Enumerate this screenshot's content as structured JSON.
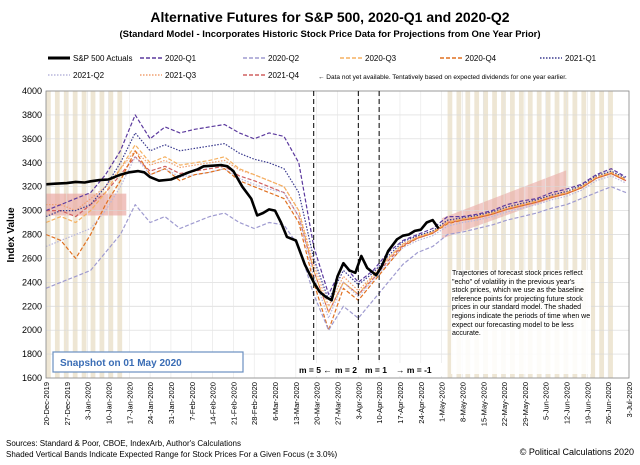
{
  "chart_data": {
    "type": "line",
    "title": "Alternative Futures for S&P 500, 2020-Q1 and 2020-Q2",
    "subtitle": "(Standard Model - Incorporates Historic Stock Price Data for Projections from One Year Prior)",
    "ylabel": "Index Value",
    "xlabel": "",
    "ylim": [
      1600,
      4000
    ],
    "yticks": [
      1600,
      1800,
      2000,
      2200,
      2400,
      2600,
      2800,
      3000,
      3200,
      3400,
      3600,
      3800,
      4000
    ],
    "xlim": [
      "2019-12-20",
      "2020-07-03"
    ],
    "xticks": [
      "20-Dec-2019",
      "27-Dec-2019",
      "3-Jan-2020",
      "10-Jan-2020",
      "17-Jan-2020",
      "24-Jan-2020",
      "31-Jan-2020",
      "7-Feb-2020",
      "14-Feb-2020",
      "21-Feb-2020",
      "28-Feb-2020",
      "6-Mar-2020",
      "13-Mar-2020",
      "20-Mar-2020",
      "27-Mar-2020",
      "3-Apr-2020",
      "10-Apr-2020",
      "17-Apr-2020",
      "24-Apr-2020",
      "1-May-2020",
      "8-May-2020",
      "15-May-2020",
      "22-May-2020",
      "29-May-2020",
      "5-Jun-2020",
      "12-Jun-2020",
      "19-Jun-2020",
      "26-Jun-2020",
      "3-Jul-2020"
    ],
    "grid": true,
    "legend_position": "top",
    "legend_note": "← Data not yet available. Tentatively based on expected dividends for one year earlier.",
    "series": [
      {
        "name": "S&P 500 Actuals",
        "color": "#000000",
        "style": "solid",
        "x": [
          0,
          3,
          7,
          10,
          13,
          15,
          18,
          21,
          23,
          25,
          28,
          31,
          33,
          35,
          38,
          42,
          45,
          48,
          51,
          53,
          56,
          59,
          61,
          63,
          66,
          69,
          71,
          73,
          75,
          77,
          79,
          81,
          84,
          87,
          90,
          92,
          94,
          96,
          98,
          100,
          102,
          104,
          106,
          108,
          111,
          113,
          115,
          118,
          120,
          122,
          124,
          126,
          128,
          130,
          132
        ],
        "values": [
          3220,
          3225,
          3230,
          3240,
          3235,
          3245,
          3255,
          3260,
          3280,
          3300,
          3320,
          3330,
          3320,
          3280,
          3250,
          3260,
          3290,
          3320,
          3345,
          3370,
          3375,
          3380,
          3370,
          3330,
          3200,
          3100,
          2960,
          2980,
          3010,
          3000,
          2900,
          2780,
          2750,
          2550,
          2400,
          2320,
          2280,
          2250,
          2450,
          2560,
          2500,
          2480,
          2620,
          2520,
          2460,
          2540,
          2660,
          2760,
          2790,
          2800,
          2830,
          2840,
          2900,
          2920,
          2850
        ]
      },
      {
        "name": "2020-Q1",
        "color": "#5c3a9e",
        "style": "dashed",
        "x": [
          0,
          5,
          10,
          15,
          20,
          25,
          30,
          35,
          40,
          45,
          50,
          55,
          60,
          65,
          70,
          75,
          80,
          85,
          90,
          95,
          100,
          105,
          110,
          115,
          120,
          125,
          130,
          135,
          140,
          145,
          150,
          155,
          160,
          165,
          170,
          175,
          180,
          185,
          190,
          195
        ],
        "values": [
          3000,
          3050,
          3100,
          3150,
          3300,
          3500,
          3800,
          3600,
          3700,
          3650,
          3680,
          3700,
          3720,
          3650,
          3600,
          3650,
          3620,
          3400,
          2700,
          2300,
          2550,
          2400,
          2500,
          2650,
          2750,
          2800,
          2850,
          2950,
          2950,
          2970,
          3000,
          3050,
          3080,
          3100,
          3150,
          3180,
          3220,
          3300,
          3350,
          3280
        ]
      },
      {
        "name": "2020-Q2",
        "color": "#9f9bd0",
        "style": "dashed",
        "x": [
          0,
          5,
          10,
          15,
          20,
          25,
          30,
          35,
          40,
          45,
          50,
          55,
          60,
          65,
          70,
          75,
          80,
          85,
          90,
          95,
          100,
          105,
          110,
          115,
          120,
          125,
          130,
          135,
          140,
          145,
          150,
          155,
          160,
          165,
          170,
          175,
          180,
          185,
          190,
          195
        ],
        "values": [
          2350,
          2400,
          2450,
          2500,
          2650,
          2800,
          3050,
          2900,
          2950,
          2850,
          2900,
          2950,
          2980,
          2900,
          2850,
          2900,
          2880,
          2700,
          2300,
          2000,
          2200,
          2100,
          2250,
          2400,
          2550,
          2650,
          2700,
          2800,
          2820,
          2850,
          2880,
          2920,
          2950,
          2980,
          3020,
          3050,
          3100,
          3150,
          3200,
          3150
        ]
      },
      {
        "name": "2020-Q3",
        "color": "#f5b060",
        "style": "dashed",
        "x": [
          0,
          5,
          10,
          15,
          20,
          25,
          30,
          35,
          40,
          45,
          50,
          55,
          60,
          65,
          70,
          75,
          80,
          85,
          90,
          95,
          100,
          105,
          110,
          115,
          120,
          125,
          130,
          135,
          140,
          145,
          150,
          155,
          160,
          165,
          170,
          175,
          180,
          185,
          190,
          195
        ],
        "values": [
          2900,
          2950,
          2900,
          3000,
          3150,
          3350,
          3550,
          3400,
          3450,
          3380,
          3400,
          3420,
          3450,
          3350,
          3300,
          3250,
          3200,
          3000,
          2500,
          2150,
          2400,
          2300,
          2450,
          2600,
          2720,
          2780,
          2820,
          2900,
          2930,
          2950,
          2980,
          3020,
          3050,
          3080,
          3120,
          3150,
          3200,
          3280,
          3320,
          3260
        ]
      },
      {
        "name": "2020-Q4",
        "color": "#e07020",
        "style": "dashed",
        "x": [
          0,
          5,
          10,
          15,
          20,
          25,
          30,
          35,
          40,
          45,
          50,
          55,
          60,
          65,
          70,
          75,
          80,
          85,
          90,
          95,
          100,
          105,
          110,
          115,
          120,
          125,
          130,
          135,
          140,
          145,
          150,
          155,
          160,
          165,
          170,
          175,
          180,
          185,
          190,
          195
        ],
        "values": [
          2800,
          2750,
          2600,
          2800,
          3050,
          3250,
          3500,
          3300,
          3350,
          3250,
          3300,
          3320,
          3350,
          3250,
          3200,
          3150,
          3100,
          2900,
          2400,
          2000,
          2350,
          2250,
          2400,
          2550,
          2700,
          2770,
          2810,
          2890,
          2920,
          2940,
          2970,
          3010,
          3040,
          3070,
          3110,
          3140,
          3190,
          3270,
          3310,
          3250
        ]
      },
      {
        "name": "2021-Q1",
        "color": "#3b3b8f",
        "style": "dotted",
        "x": [
          0,
          5,
          10,
          15,
          20,
          25,
          30,
          35,
          40,
          45,
          50,
          55,
          60,
          65,
          70,
          75,
          80,
          85,
          90,
          95,
          100,
          105,
          110,
          115,
          120,
          125,
          130,
          135,
          140,
          145,
          150,
          155,
          160,
          165,
          170,
          175,
          180,
          185,
          190,
          195
        ],
        "values": [
          2950,
          3000,
          3000,
          3050,
          3200,
          3400,
          3650,
          3500,
          3550,
          3500,
          3520,
          3540,
          3560,
          3480,
          3430,
          3400,
          3350,
          3150,
          2600,
          2250,
          2500,
          2380,
          2480,
          2620,
          2740,
          2790,
          2830,
          2920,
          2940,
          2960,
          2990,
          3030,
          3060,
          3090,
          3130,
          3160,
          3210,
          3290,
          3330,
          3270
        ]
      },
      {
        "name": "2021-Q2",
        "color": "#b8b6dc",
        "style": "dotted",
        "x": [
          0,
          5,
          10,
          15,
          20,
          25,
          30,
          35,
          40,
          45,
          50,
          55,
          60,
          65,
          70,
          75,
          80,
          85,
          90,
          95,
          100,
          105,
          110,
          115,
          120,
          125,
          130,
          135,
          140,
          145,
          150,
          155,
          160,
          165,
          170,
          175,
          180,
          185,
          190,
          195
        ],
        "values": [
          2700,
          2750,
          2800,
          2850,
          3000,
          3200,
          3450,
          3300,
          3350,
          3280,
          3300,
          3320,
          3350,
          3270,
          3220,
          3180,
          3150,
          2950,
          2450,
          2100,
          2400,
          2280,
          2420,
          2560,
          2690,
          2750,
          2790,
          2870,
          2900,
          2920,
          2950,
          2990,
          3020,
          3050,
          3090,
          3120,
          3170,
          3250,
          3290,
          3230
        ]
      },
      {
        "name": "2021-Q3",
        "color": "#f0a070",
        "style": "dotted",
        "x": [
          0,
          5,
          10,
          15,
          20,
          25,
          30,
          35,
          40,
          45,
          50,
          55,
          60,
          65,
          70,
          75,
          80,
          85,
          90,
          95,
          100,
          105,
          110,
          115,
          120,
          125,
          130,
          135,
          140,
          145,
          150,
          155,
          160,
          165,
          170,
          175,
          180,
          185,
          190,
          195
        ],
        "values": [
          3050,
          3050,
          3000,
          3100,
          3200,
          3350,
          3500,
          3380,
          3420,
          3360,
          3380,
          3400,
          3420,
          3340,
          3300,
          3250,
          3200,
          3000,
          2550,
          2200,
          2450,
          2330,
          2460,
          2600,
          2720,
          2780,
          2820,
          2910,
          2930,
          2950,
          2980,
          3020,
          3050,
          3080,
          3120,
          3150,
          3200,
          3280,
          3320,
          3260
        ]
      },
      {
        "name": "2021-Q4",
        "color": "#d06060",
        "style": "dashed",
        "x": [
          0,
          5,
          10,
          15,
          20,
          25,
          30,
          35,
          40,
          45,
          50,
          55,
          60,
          65,
          70,
          75,
          80,
          85,
          90,
          95,
          100,
          105,
          110,
          115,
          120,
          125,
          130,
          135,
          140,
          145,
          150,
          155,
          160,
          165,
          170,
          175,
          180,
          185,
          190,
          195
        ],
        "values": [
          3000,
          3000,
          2950,
          3050,
          3150,
          3300,
          3450,
          3330,
          3370,
          3310,
          3330,
          3350,
          3370,
          3290,
          3250,
          3200,
          3150,
          2950,
          2500,
          2150,
          2400,
          2300,
          2430,
          2580,
          2710,
          2770,
          2810,
          2900,
          2920,
          2940,
          2970,
          3010,
          3040,
          3070,
          3110,
          3140,
          3190,
          3270,
          3310,
          3250
        ]
      }
    ],
    "annotations": {
      "snapshot": "Snapshot on 01 May 2020",
      "m_labels": [
        "m = 5 ←",
        "m = 2",
        "m = 1",
        "→ m = -1"
      ],
      "note": "Trajectories of forecast stock prices reflect \"echo\" of volatility in the previous year's stock prices, which we use as the baseline reference points for projecting future stock prices in our standard model.   The shaded regions indicate the periods of time when we expect our forecasting model to be less accurate."
    },
    "footer": {
      "sources": "Sources: Standard & Poor, CBOE, IndexArb, Author's Calculations",
      "bands": "Shaded Vertical Bands Indicate Expected Range for Stock Prices For a Given Focus (± 3.0%)",
      "credit": "© Political Calculations 2020"
    }
  }
}
